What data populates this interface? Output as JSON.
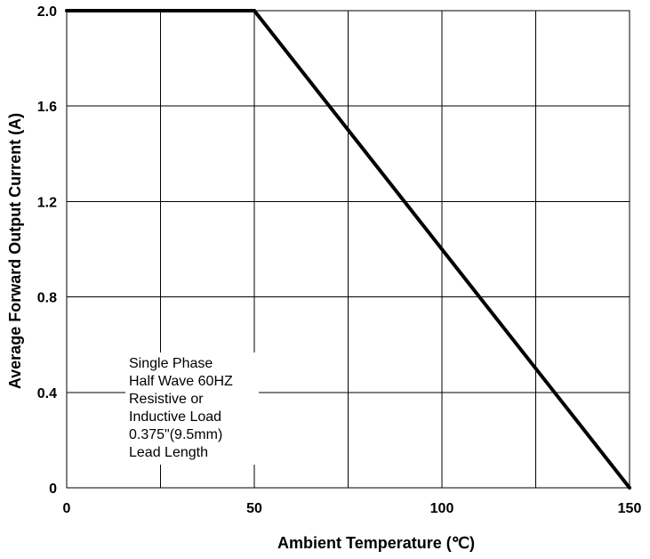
{
  "chart_data": {
    "type": "line",
    "xlabel": "Ambient Temperature (℃)",
    "ylabel": "Average Forward Output Current (A)",
    "xlim": [
      0,
      150
    ],
    "ylim": [
      0,
      2.0
    ],
    "x_ticks": [
      {
        "value": 0,
        "label": "0"
      },
      {
        "value": 50,
        "label": "50"
      },
      {
        "value": 100,
        "label": "100"
      },
      {
        "value": 150,
        "label": "150"
      }
    ],
    "y_ticks": [
      {
        "value": 0,
        "label": "0"
      },
      {
        "value": 0.4,
        "label": "0.4"
      },
      {
        "value": 0.8,
        "label": "0.8"
      },
      {
        "value": 1.2,
        "label": "1.2"
      },
      {
        "value": 1.6,
        "label": "1.6"
      },
      {
        "value": 2.0,
        "label": "2.0"
      }
    ],
    "x_grid_values": [
      0,
      25,
      50,
      75,
      100,
      125,
      150
    ],
    "y_grid_values": [
      0,
      0.4,
      0.8,
      1.2,
      1.6,
      2.0
    ],
    "grid": true,
    "series": [
      {
        "x": [
          0,
          50,
          150
        ],
        "y": [
          2.0,
          2.0,
          0
        ],
        "color": "#000000"
      }
    ],
    "annotation": {
      "lines": [
        "Single Phase",
        "Half Wave 60HZ",
        "Resistive or",
        "Inductive Load",
        "0.375\"(9.5mm)",
        "Lead Length"
      ]
    }
  }
}
